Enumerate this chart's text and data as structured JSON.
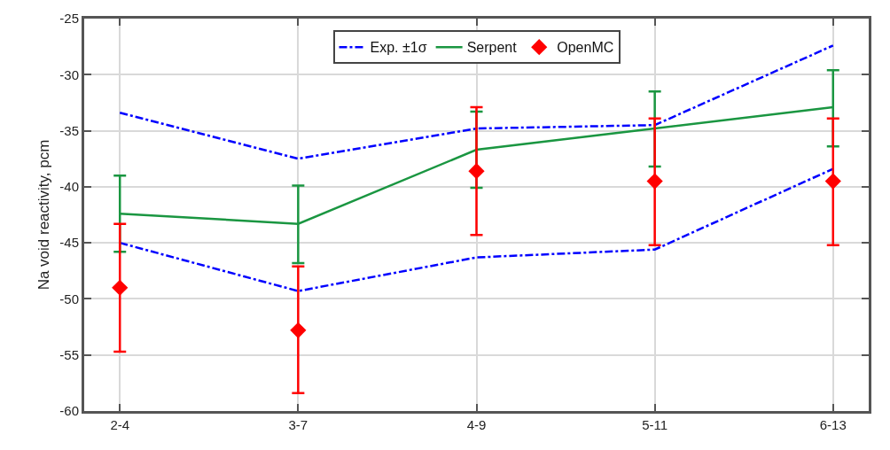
{
  "chart_data": {
    "type": "line",
    "ylabel": "Na void reactivity, pcm",
    "categories": [
      "2-4",
      "3-7",
      "4-9",
      "5-11",
      "6-13"
    ],
    "ylim": [
      -60,
      -25
    ],
    "yticks": [
      -60,
      -55,
      -50,
      -45,
      -40,
      -35,
      -30,
      -25
    ],
    "grid": true,
    "legend": "top",
    "series": [
      {
        "name": "Exp. ±1σ",
        "color": "#0000ff",
        "line_style": "dashed",
        "marker": "none",
        "values": [
          -33.4,
          -37.5,
          -34.8,
          -34.5,
          -27.4
        ]
      },
      {
        "color": "#0000ff",
        "line_style": "dashed",
        "marker": "none",
        "values": [
          -45.0,
          -49.3,
          -46.3,
          -45.6,
          -38.4
        ]
      },
      {
        "name": "Serpent",
        "color": "#1a9641",
        "line_style": "solid",
        "marker": "none",
        "values": [
          -42.4,
          -43.3,
          -36.7,
          -34.8,
          -32.9
        ],
        "errors": [
          [
            -45.8,
            -39.0
          ],
          [
            -46.8,
            -39.9
          ],
          [
            -40.1,
            -33.3
          ],
          [
            -38.2,
            -31.5
          ],
          [
            -36.4,
            -29.6
          ]
        ]
      },
      {
        "name": "OpenMC",
        "type": "scatter",
        "color": "#ff0000",
        "marker": "diamond",
        "values": [
          -49.0,
          -52.8,
          -38.6,
          -39.5,
          -39.5
        ],
        "errors": [
          [
            -54.7,
            -43.3
          ],
          [
            -58.4,
            -47.1
          ],
          [
            -44.3,
            -32.9
          ],
          [
            -45.2,
            -33.9
          ],
          [
            -45.2,
            -33.9
          ]
        ]
      }
    ]
  }
}
